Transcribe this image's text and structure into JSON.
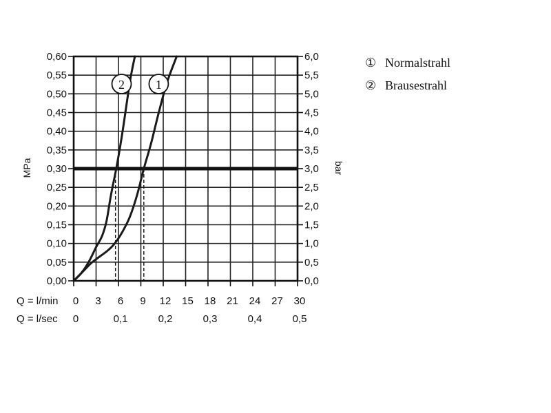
{
  "chart_data": {
    "type": "line",
    "left_axis": {
      "label": "MPa",
      "range": [
        0,
        0.6
      ],
      "ticks": [
        "0,00",
        "0,05",
        "0,10",
        "0,15",
        "0,20",
        "0,25",
        "0,30",
        "0,35",
        "0,40",
        "0,45",
        "0,50",
        "0,55",
        "0,60"
      ]
    },
    "right_axis": {
      "label": "bar",
      "range": [
        0,
        6
      ],
      "ticks": [
        "0,0",
        "0,5",
        "1,0",
        "1,5",
        "2,0",
        "2,5",
        "3,0",
        "3,5",
        "4,0",
        "4,5",
        "5,0",
        "5,5",
        "6,0"
      ]
    },
    "x_axis_lmin": {
      "label": "Q = l/min",
      "range": [
        0,
        30
      ],
      "ticks": [
        "0",
        "3",
        "6",
        "9",
        "12",
        "15",
        "18",
        "21",
        "24",
        "27",
        "30"
      ]
    },
    "x_axis_lsec": {
      "label": "Q = l/sec",
      "ticks": [
        "0",
        "0,1",
        "0,2",
        "0,3",
        "0,4",
        "0,5"
      ]
    },
    "grid": true,
    "reference_line": {
      "y": 0.3
    },
    "series": [
      {
        "name": "Normalstrahl",
        "marker": "1",
        "points": [
          [
            0,
            0
          ],
          [
            1,
            0.02
          ],
          [
            2.5,
            0.05
          ],
          [
            4.5,
            0.08
          ],
          [
            5.5,
            0.1
          ],
          [
            6.5,
            0.13
          ],
          [
            7.5,
            0.17
          ],
          [
            8.5,
            0.23
          ],
          [
            9.4,
            0.3
          ],
          [
            10.4,
            0.37
          ],
          [
            11.4,
            0.45
          ],
          [
            12.5,
            0.53
          ],
          [
            13.8,
            0.6
          ]
        ],
        "drop_x": 9.4
      },
      {
        "name": "Brausestrahl",
        "marker": "2",
        "points": [
          [
            0,
            0
          ],
          [
            1,
            0.02
          ],
          [
            2,
            0.05
          ],
          [
            3,
            0.09
          ],
          [
            3.8,
            0.12
          ],
          [
            4.4,
            0.16
          ],
          [
            5,
            0.23
          ],
          [
            5.7,
            0.3
          ],
          [
            6.4,
            0.38
          ],
          [
            7,
            0.46
          ],
          [
            7.6,
            0.54
          ],
          [
            8.2,
            0.6
          ]
        ],
        "drop_x": 5.6
      }
    ],
    "legend": {
      "position": "top-right",
      "entries": [
        {
          "marker": "1",
          "glyph": "①",
          "text": "Normalstrahl"
        },
        {
          "marker": "2",
          "glyph": "②",
          "text": "Brausestrahl"
        }
      ]
    }
  }
}
